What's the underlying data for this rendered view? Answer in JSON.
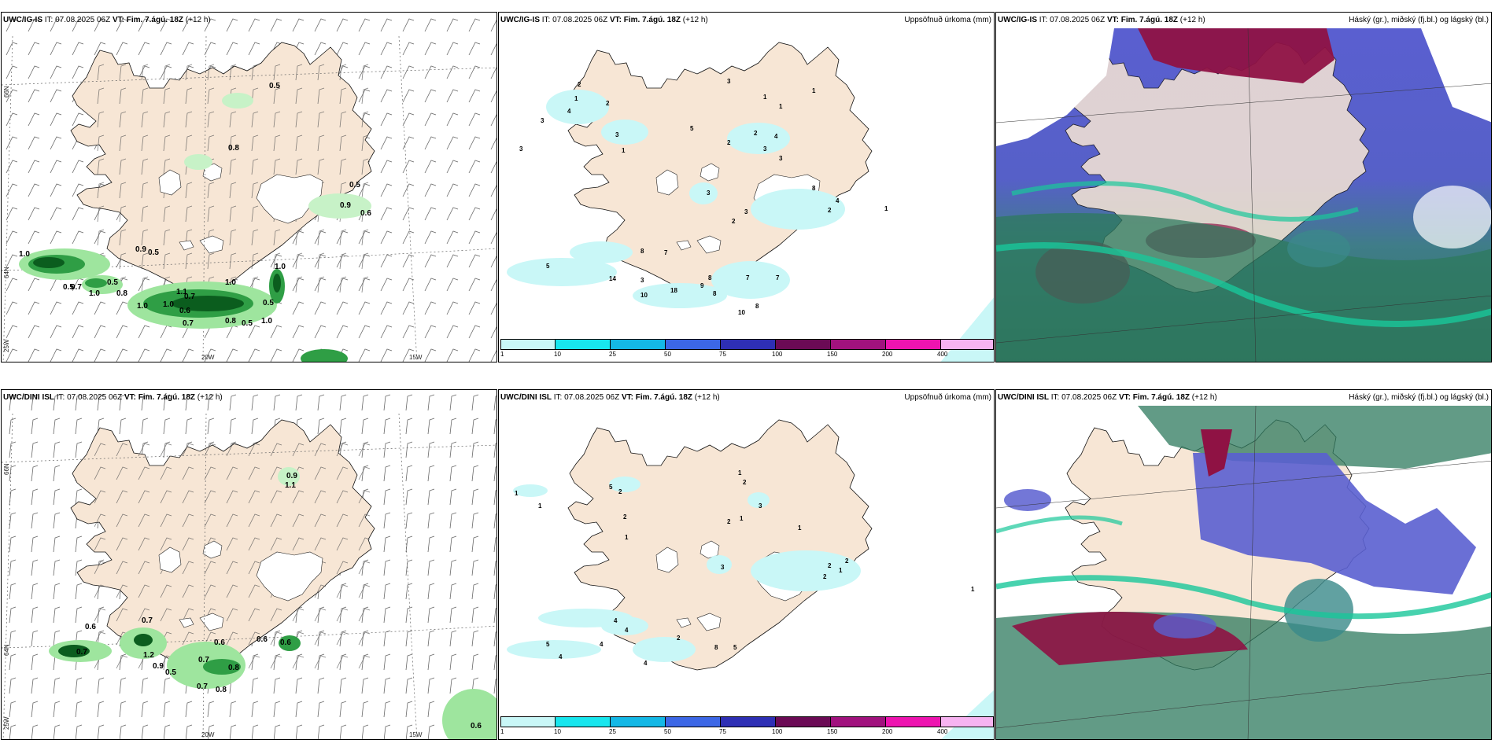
{
  "rows": [
    {
      "model": "UWC/IG-IS",
      "it_label": "IT:",
      "it_value": "07.08.2025 06Z",
      "vt_label": "VT:",
      "vt_value": "Fim. 7.ágú. 18Z",
      "lead": "(+12 h)"
    },
    {
      "model": "UWC/DINI ISL",
      "it_label": "IT:",
      "it_value": "07.08.2025 06Z",
      "vt_label": "VT:",
      "vt_value": "Fim. 7.ágú. 18Z",
      "lead": "(+12 h)"
    }
  ],
  "precip_title": "Uppsöfnuð úrkoma (mm)",
  "cloud_title": "Háský (gr.), miðský (fj.bl.) og lágský (bl.)",
  "axis_labels": {
    "lat_66": "66N",
    "lat_64": "64N",
    "lon_25": "25W",
    "lon_20": "20W",
    "lon_15": "15W"
  },
  "colorbar": {
    "ticks": [
      "1",
      "10",
      "25",
      "50",
      "75",
      "100",
      "150",
      "200",
      "400"
    ],
    "colors": [
      "#c9f7f7",
      "#18e6ee",
      "#14b8e6",
      "#3c67e6",
      "#2e2fb5",
      "#6b0a55",
      "#a1127e",
      "#ee14b0",
      "#f7b3f1"
    ]
  },
  "panel_a_top_values": [
    "0.5",
    "0.8",
    "0.5",
    "0.6",
    "0.9",
    "0.5",
    "1.0",
    "0.5",
    "1.0",
    "0.7",
    "0.8",
    "0.5",
    "1.0",
    "1.0",
    "0.7",
    "0.6",
    "0.5",
    "1.0",
    "0.7",
    "1.0",
    "0.8",
    "1.1",
    "0.9",
    "0.5",
    "1.0"
  ],
  "panel_b_top_values": [
    "3",
    "4",
    "1",
    "2",
    "2",
    "5",
    "3",
    "1",
    "3",
    "3",
    "1",
    "1",
    "2",
    "1",
    "2",
    "4",
    "3",
    "3",
    "3",
    "2",
    "3",
    "2",
    "8",
    "1",
    "4",
    "7",
    "8",
    "5",
    "14",
    "3",
    "10",
    "18",
    "8",
    "9",
    "8",
    "7",
    "7",
    "8",
    "10"
  ],
  "panel_a_bottom_values": [
    "0.9",
    "1.1",
    "0.6",
    "0.7",
    "0.6",
    "1.2",
    "0.7",
    "0.6",
    "0.8",
    "0.9",
    "0.5",
    "0.7",
    "0.7",
    "0.8",
    "0.6",
    "0.6"
  ],
  "panel_b_bottom_values": [
    "1",
    "5",
    "2",
    "1",
    "3",
    "2",
    "1",
    "2",
    "1",
    "1",
    "2",
    "1",
    "3",
    "1",
    "2",
    "2",
    "2",
    "1",
    "4",
    "4",
    "4",
    "4",
    "2",
    "8",
    "5",
    "5",
    "4"
  ]
}
